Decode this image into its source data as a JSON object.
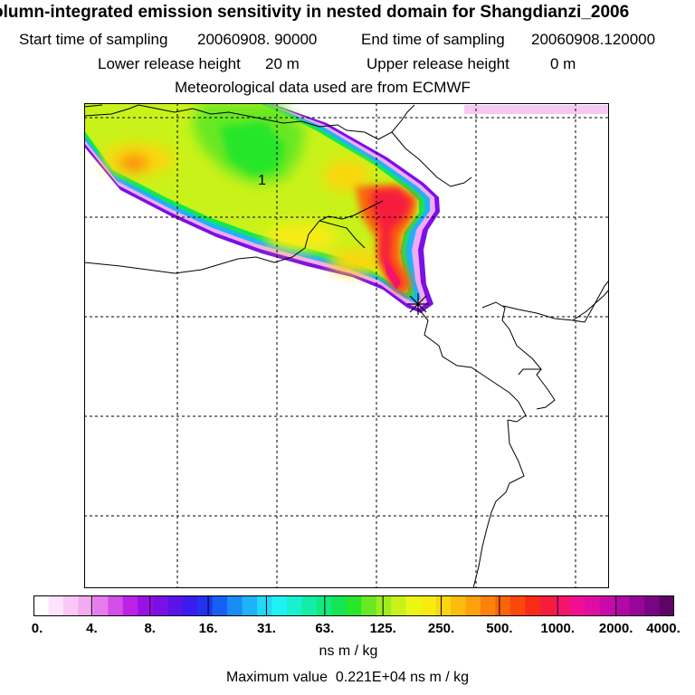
{
  "header": {
    "title": "olumn-integrated emission sensitivity in nested domain for Shangdianzi_2006",
    "start_label": "Start time of sampling",
    "start_value": "20060908. 90000",
    "end_label": "End time of sampling",
    "end_value": "20060908.120000",
    "lower_label": "Lower release height",
    "lower_value": "20 m",
    "upper_label": "Upper release height",
    "upper_value": "0 m",
    "met_line": "Meteorological data used are from ECMWF"
  },
  "map": {
    "grid": "on",
    "receptor_marker": "star-icon",
    "annotation": "1"
  },
  "colorbar": {
    "ticks": [
      "0.",
      "4.",
      "8.",
      "16.",
      "31.",
      "63.",
      "125.",
      "250.",
      "500.",
      "1000.",
      "2000.",
      "4000."
    ],
    "colors": [
      "#ffffff",
      "#fde3fc",
      "#f9c8f7",
      "#f3aaf2",
      "#e77bee",
      "#d44ee9",
      "#bb22e6",
      "#9b10e6",
      "#7a10e6",
      "#5a14e8",
      "#3a1cee",
      "#2233f0",
      "#1560f2",
      "#1a8af4",
      "#1fb2f6",
      "#21d8f7",
      "#1ff2f2",
      "#19f0cf",
      "#12eda8",
      "#10ea7f",
      "#13e654",
      "#28e62a",
      "#67e822",
      "#9ded1e",
      "#c9f21a",
      "#ecf616",
      "#f6ec12",
      "#f9d710",
      "#fbbc0e",
      "#fca00c",
      "#fc820b",
      "#fb640b",
      "#fa470c",
      "#f82b16",
      "#f71b3c",
      "#f5146a",
      "#f00f92",
      "#e00ca3",
      "#c90aa8",
      "#b108a6",
      "#960698",
      "#7a0584",
      "#5e0468"
    ],
    "unit": "ns m / kg",
    "max_label": "Maximum value",
    "max_value": "0.221E+04 ns m / kg"
  }
}
